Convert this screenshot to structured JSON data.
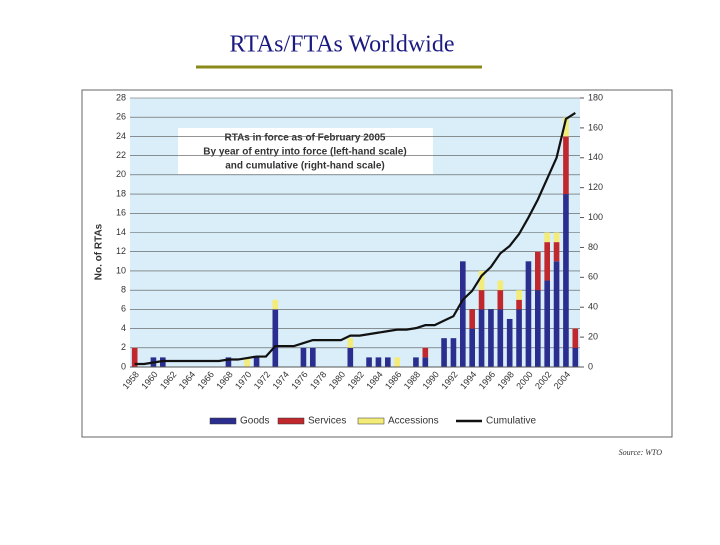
{
  "title": "RTAs/FTAs Worldwide",
  "source": "Source: WTO",
  "chart_data": {
    "type": "bar",
    "stacked": true,
    "annotation": [
      "RTAs in force as of February 2005",
      "By year of entry into force (left-hand scale)",
      "and cumulative (right-hand scale)"
    ],
    "ylabel": "No. of RTAs",
    "categories": [
      "1958",
      null,
      "1960",
      null,
      "1962",
      null,
      "1964",
      null,
      "1966",
      null,
      "1968",
      null,
      "1970",
      null,
      "1972",
      null,
      "1974",
      null,
      "1976",
      null,
      "1978",
      null,
      "1980",
      null,
      "1982",
      null,
      "1984",
      null,
      "1986",
      null,
      "1988",
      null,
      "1990",
      null,
      "1992",
      null,
      "1994",
      null,
      "1996",
      null,
      "1998",
      null,
      "2000",
      null,
      "2002",
      null,
      "2004",
      null
    ],
    "series": [
      {
        "name": "Goods",
        "color": "#2b2e8e",
        "values": [
          0,
          0,
          1,
          1,
          0,
          0,
          0,
          0,
          0,
          0,
          1,
          0,
          0,
          1,
          0,
          6,
          0,
          0,
          2,
          2,
          0,
          0,
          0,
          2,
          0,
          1,
          1,
          1,
          0,
          0,
          1,
          1,
          0,
          3,
          3,
          11,
          4,
          6,
          6,
          6,
          5,
          6,
          11,
          8,
          9,
          11,
          18,
          2
        ]
      },
      {
        "name": "Services",
        "color": "#c0282d",
        "values": [
          2,
          0,
          0,
          0,
          0,
          0,
          0,
          0,
          0,
          0,
          0,
          0,
          0,
          0,
          0,
          0,
          0,
          0,
          0,
          0,
          0,
          0,
          0,
          0,
          0,
          0,
          0,
          0,
          0,
          0,
          0,
          1,
          0,
          0,
          0,
          0,
          2,
          2,
          0,
          2,
          0,
          1,
          0,
          4,
          4,
          2,
          6,
          2
        ]
      },
      {
        "name": "Accessions",
        "color": "#f3ec78",
        "values": [
          0,
          0,
          0,
          0,
          0,
          0,
          0,
          0,
          0,
          0,
          0,
          0,
          1,
          0,
          0,
          1,
          0,
          0,
          0,
          0,
          0,
          0,
          0,
          1,
          0,
          0,
          0,
          0,
          1,
          0,
          0,
          0,
          0,
          0,
          0,
          0,
          0,
          2,
          0,
          1,
          0,
          1,
          0,
          0,
          1,
          1,
          2,
          0
        ]
      },
      {
        "name": "Cumulative",
        "color": "#111111",
        "type": "line",
        "axis": "y2",
        "values": [
          2,
          2,
          3,
          4,
          4,
          4,
          4,
          4,
          4,
          4,
          5,
          5,
          6,
          7,
          7,
          14,
          14,
          14,
          16,
          18,
          18,
          18,
          18,
          21,
          21,
          22,
          23,
          24,
          25,
          25,
          26,
          28,
          28,
          31,
          34,
          45,
          51,
          61,
          67,
          76,
          81,
          89,
          100,
          112,
          126,
          140,
          166,
          170
        ]
      }
    ],
    "ylim": [
      0,
      28
    ],
    "yticks": [
      0,
      2,
      4,
      6,
      8,
      10,
      12,
      14,
      16,
      18,
      20,
      22,
      24,
      26,
      28
    ],
    "y2lim": [
      0,
      180
    ],
    "y2ticks": [
      0,
      20,
      40,
      60,
      80,
      100,
      120,
      140,
      160,
      180
    ],
    "grid": true,
    "legend": "bottom"
  }
}
